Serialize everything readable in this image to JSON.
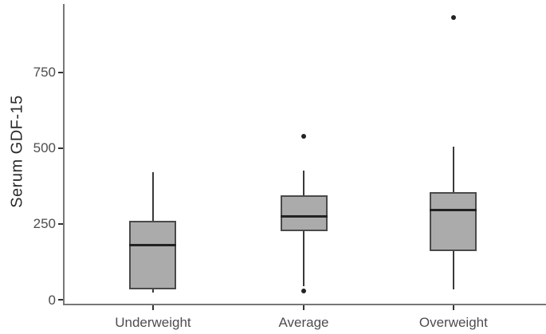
{
  "chart_data": {
    "type": "boxplot",
    "title": "",
    "xlabel": "",
    "ylabel": "Serum GDF-15",
    "yticks": [
      0,
      250,
      500,
      750
    ],
    "ylim": [
      -13,
      975
    ],
    "grid": "off",
    "legend": "none",
    "categories": [
      "Underweight",
      "Average",
      "Overweight"
    ],
    "groups": [
      {
        "label": "Underweight",
        "whisker_min": 25,
        "q1": 35,
        "median": 180,
        "q3": 260,
        "whisker_max": 420,
        "outliers": []
      },
      {
        "label": "Average",
        "whisker_min": 45,
        "q1": 225,
        "median": 275,
        "q3": 345,
        "whisker_max": 425,
        "outliers": [
          540,
          30
        ]
      },
      {
        "label": "Overweight",
        "whisker_min": 35,
        "q1": 160,
        "median": 295,
        "q3": 355,
        "whisker_max": 505,
        "outliers": [
          930
        ]
      }
    ],
    "colors": {
      "box_fill": "#ababab",
      "box_border": "#4a4a4a",
      "median": "#222222",
      "whisker": "#3a3a3a",
      "outlier": "#222222",
      "axis_line": "#777777",
      "tick_mark": "#333333",
      "tick_label": "#4d4d4d",
      "axis_title": "#2b2b2b",
      "background": "#ffffff"
    }
  }
}
